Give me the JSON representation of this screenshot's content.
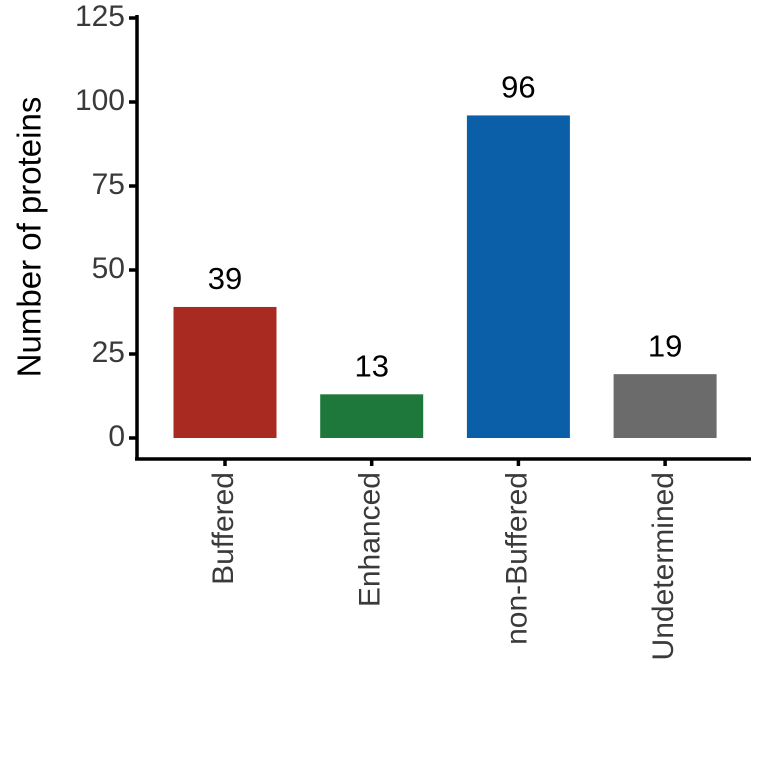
{
  "chart_data": {
    "type": "bar",
    "y_label": "Number of proteins",
    "categories": [
      "Buffered",
      "Enhanced",
      "non-Buffered",
      "Undetermined"
    ],
    "values": [
      39,
      13,
      96,
      19
    ],
    "colors": [
      "#a82a20",
      "#1e773b",
      "#0b5ea8",
      "#6b6b6b"
    ],
    "ylim": [
      -6.25,
      125
    ],
    "yticks": [
      0,
      25,
      50,
      75,
      100,
      125
    ],
    "grid": false
  }
}
